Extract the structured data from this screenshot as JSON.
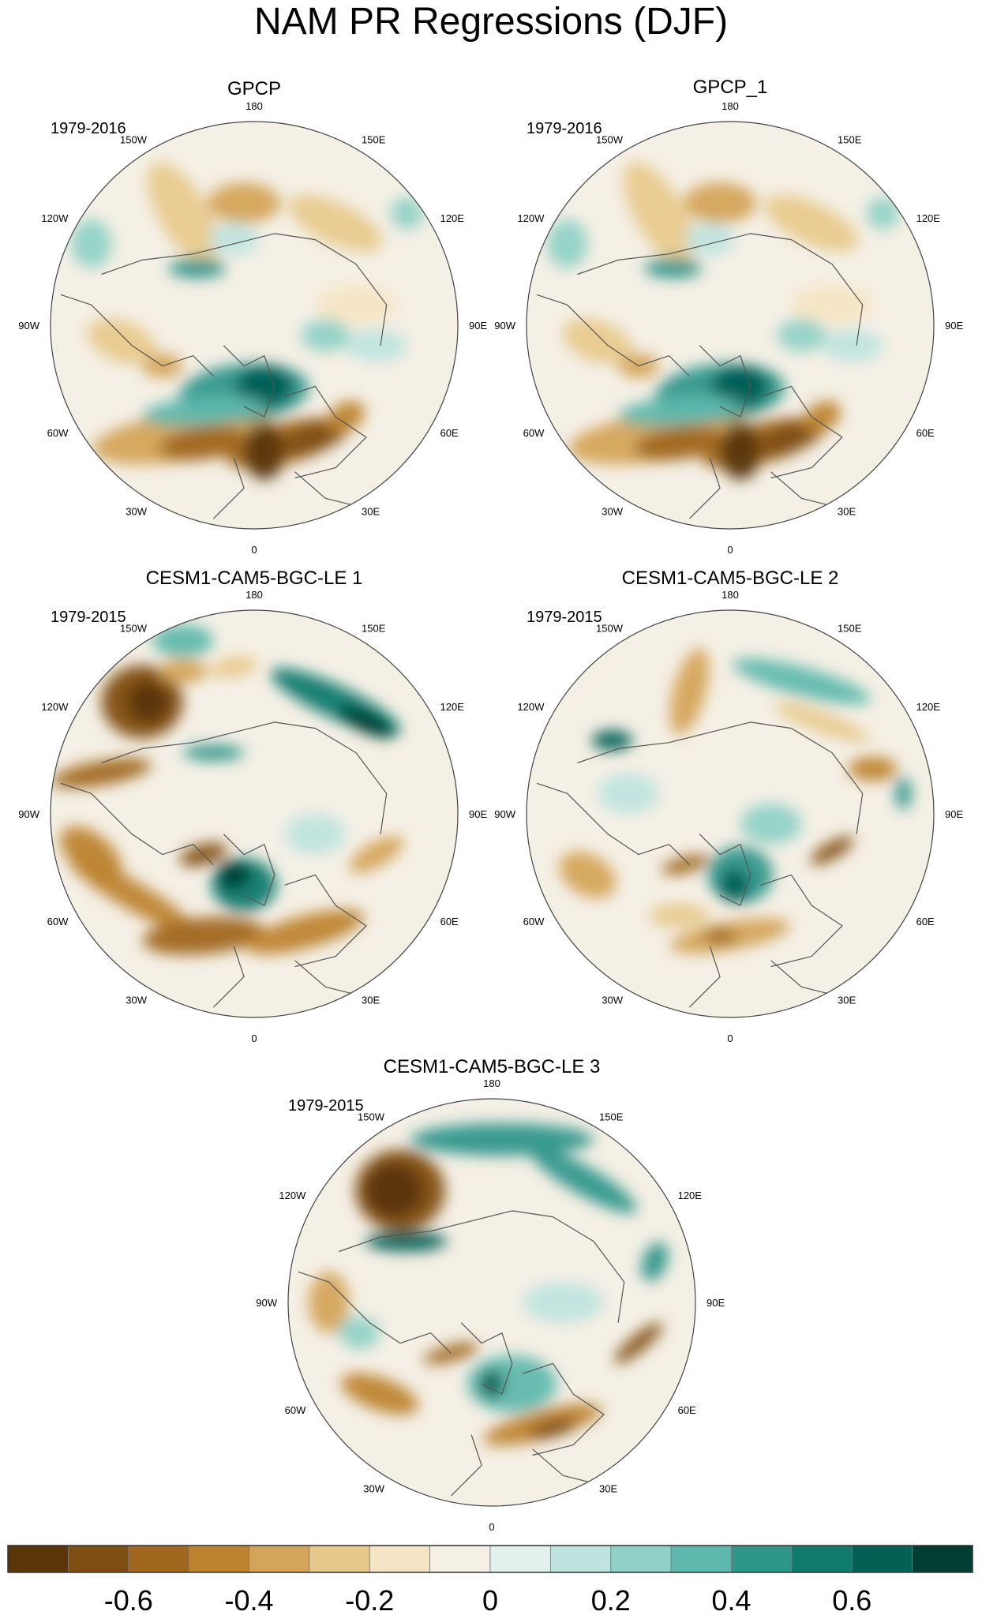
{
  "title": "NAM PR Regressions (DJF)",
  "lon_labels": [
    "180",
    "150E",
    "120E",
    "90E",
    "60E",
    "30E",
    "0",
    "30W",
    "60W",
    "90W",
    "120W",
    "150W"
  ],
  "panels": [
    {
      "id": "gpcp",
      "title": "GPCP",
      "period": "1979-2016",
      "pattern": "obs"
    },
    {
      "id": "gpcp1",
      "title": "GPCP_1",
      "period": "1979-2016",
      "pattern": "obs"
    },
    {
      "id": "le1",
      "title": "CESM1-CAM5-BGC-LE 1",
      "period": "1979-2015",
      "pattern": "le1"
    },
    {
      "id": "le2",
      "title": "CESM1-CAM5-BGC-LE 2",
      "period": "1979-2015",
      "pattern": "le2"
    },
    {
      "id": "le3",
      "title": "CESM1-CAM5-BGC-LE 3",
      "period": "1979-2015",
      "pattern": "le3"
    }
  ],
  "colorbar": {
    "colors": [
      "#5a3508",
      "#7f4e12",
      "#a0671e",
      "#bd832f",
      "#d4a45a",
      "#e8c98c",
      "#f5e5c4",
      "#f5f0e6",
      "#e2f0ee",
      "#bfe4df",
      "#90d1c7",
      "#5fb8ad",
      "#2e968b",
      "#107a6f",
      "#045f55",
      "#003d33"
    ],
    "labels": [
      "-0.6",
      "-0.4",
      "-0.2",
      "0",
      "0.2",
      "0.4",
      "0.6"
    ]
  }
}
